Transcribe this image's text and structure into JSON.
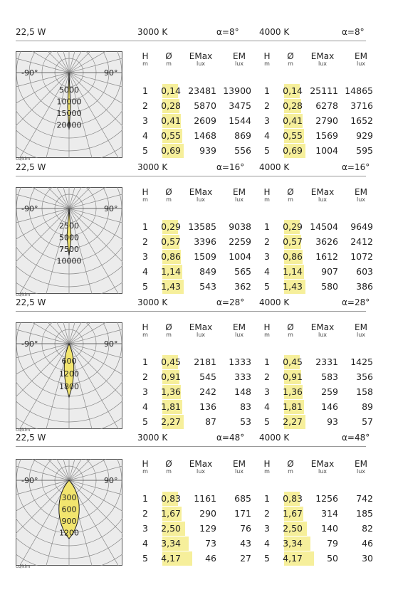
{
  "colors": {
    "highlight": "#f6ef9b",
    "beam": "#f2e56e",
    "grid": "#888888",
    "diagram_bg": "#ececec"
  },
  "top_header": {
    "power": "22,5 W",
    "temp1": "3000 K",
    "alpha1": "α=8°",
    "temp2": "4000 K",
    "alpha2": "α=8°"
  },
  "column_headers": {
    "h": "H",
    "h_unit": "m",
    "d": "Ø",
    "d_unit": "m",
    "emax": "EMax",
    "emax_unit": "lux",
    "em": "EM",
    "em_unit": "lux"
  },
  "diagram_labels": {
    "left_angle": "-90°",
    "right_angle": "90°",
    "unit": "cd/klm"
  },
  "panels": [
    {
      "scale": [
        "5000",
        "10000",
        "15000",
        "20000"
      ],
      "beam": "narrow",
      "left": [
        {
          "h": "1",
          "d": "0,14",
          "emax": "23481",
          "em": "13900"
        },
        {
          "h": "2",
          "d": "0,28",
          "emax": "5870",
          "em": "3475"
        },
        {
          "h": "3",
          "d": "0,41",
          "emax": "2609",
          "em": "1544"
        },
        {
          "h": "4",
          "d": "0,55",
          "emax": "1468",
          "em": "869"
        },
        {
          "h": "5",
          "d": "0,69",
          "emax": "939",
          "em": "556"
        }
      ],
      "right": [
        {
          "h": "1",
          "d": "0,14",
          "emax": "25111",
          "em": "14865"
        },
        {
          "h": "2",
          "d": "0,28",
          "emax": "6278",
          "em": "3716"
        },
        {
          "h": "3",
          "d": "0,41",
          "emax": "2790",
          "em": "1652"
        },
        {
          "h": "4",
          "d": "0,55",
          "emax": "1569",
          "em": "929"
        },
        {
          "h": "5",
          "d": "0,69",
          "emax": "1004",
          "em": "595"
        }
      ],
      "footer": {
        "power": "22,5 W",
        "temp1": "3000 K",
        "alpha1": "α=16°",
        "temp2": "4000 K",
        "alpha2": "α=16°"
      }
    },
    {
      "scale": [
        "2500",
        "5000",
        "7500",
        "10000"
      ],
      "beam": "narrow2",
      "left": [
        {
          "h": "1",
          "d": "0,29",
          "emax": "13585",
          "em": "9038"
        },
        {
          "h": "2",
          "d": "0,57",
          "emax": "3396",
          "em": "2259"
        },
        {
          "h": "3",
          "d": "0,86",
          "emax": "1509",
          "em": "1004"
        },
        {
          "h": "4",
          "d": "1,14",
          "emax": "849",
          "em": "565"
        },
        {
          "h": "5",
          "d": "1,43",
          "emax": "543",
          "em": "362"
        }
      ],
      "right": [
        {
          "h": "1",
          "d": "0,29",
          "emax": "14504",
          "em": "9649"
        },
        {
          "h": "2",
          "d": "0,57",
          "emax": "3626",
          "em": "2412"
        },
        {
          "h": "3",
          "d": "0,86",
          "emax": "1612",
          "em": "1072"
        },
        {
          "h": "4",
          "d": "1,14",
          "emax": "907",
          "em": "603"
        },
        {
          "h": "5",
          "d": "1,43",
          "emax": "580",
          "em": "386"
        }
      ],
      "footer": {
        "power": "22,5 W",
        "temp1": "3000 K",
        "alpha1": "α=28°",
        "temp2": "4000 K",
        "alpha2": "α=28°"
      }
    },
    {
      "scale": [
        "600",
        "1200",
        "1800"
      ],
      "beam": "medium",
      "left": [
        {
          "h": "1",
          "d": "0,45",
          "emax": "2181",
          "em": "1333"
        },
        {
          "h": "2",
          "d": "0,91",
          "emax": "545",
          "em": "333"
        },
        {
          "h": "3",
          "d": "1,36",
          "emax": "242",
          "em": "148"
        },
        {
          "h": "4",
          "d": "1,81",
          "emax": "136",
          "em": "83"
        },
        {
          "h": "5",
          "d": "2,27",
          "emax": "87",
          "em": "53"
        }
      ],
      "right": [
        {
          "h": "1",
          "d": "0,45",
          "emax": "2331",
          "em": "1425"
        },
        {
          "h": "2",
          "d": "0,91",
          "emax": "583",
          "em": "356"
        },
        {
          "h": "3",
          "d": "1,36",
          "emax": "259",
          "em": "158"
        },
        {
          "h": "4",
          "d": "1,81",
          "emax": "146",
          "em": "89"
        },
        {
          "h": "5",
          "d": "2,27",
          "emax": "93",
          "em": "57"
        }
      ],
      "footer": {
        "power": "22,5 W",
        "temp1": "3000 K",
        "alpha1": "α=48°",
        "temp2": "4000 K",
        "alpha2": "α=48°"
      }
    },
    {
      "scale": [
        "300",
        "600",
        "900",
        "1200"
      ],
      "beam": "wide",
      "left": [
        {
          "h": "1",
          "d": "0,83",
          "emax": "1161",
          "em": "685"
        },
        {
          "h": "2",
          "d": "1,67",
          "emax": "290",
          "em": "171"
        },
        {
          "h": "3",
          "d": "2,50",
          "emax": "129",
          "em": "76"
        },
        {
          "h": "4",
          "d": "3,34",
          "emax": "73",
          "em": "43"
        },
        {
          "h": "5",
          "d": "4,17",
          "emax": "46",
          "em": "27"
        }
      ],
      "right": [
        {
          "h": "1",
          "d": "0,83",
          "emax": "1256",
          "em": "742"
        },
        {
          "h": "2",
          "d": "1,67",
          "emax": "314",
          "em": "185"
        },
        {
          "h": "3",
          "d": "2,50",
          "emax": "140",
          "em": "82"
        },
        {
          "h": "4",
          "d": "3,34",
          "emax": "79",
          "em": "46"
        },
        {
          "h": "5",
          "d": "4,17",
          "emax": "50",
          "em": "30"
        }
      ],
      "footer": null
    }
  ]
}
